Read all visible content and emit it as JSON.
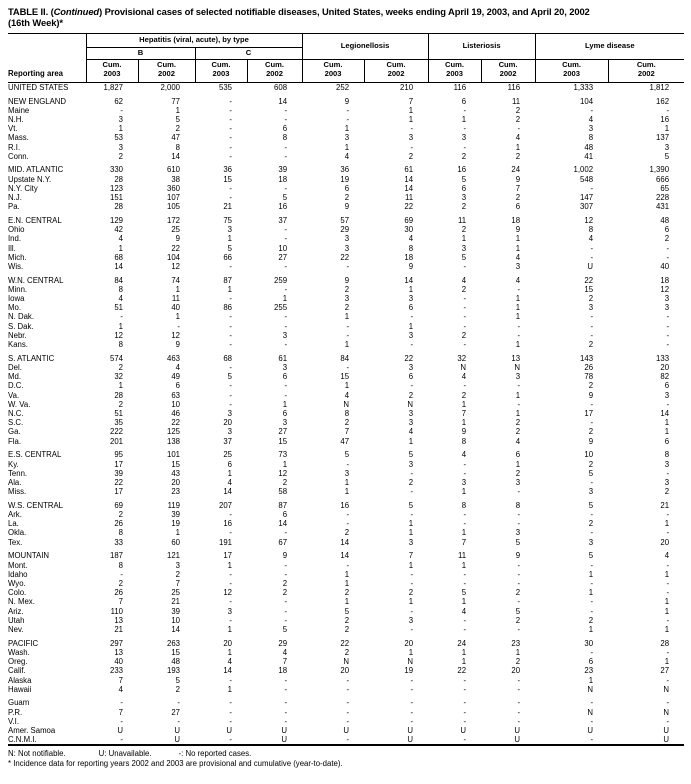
{
  "title": {
    "part1": "TABLE II. (",
    "continued": "Continued",
    "part2": ") Provisional cases of selected notifiable diseases, United States, weeks ending April 19, 2003, and April 20, 2002",
    "line2": "(16th Week)*"
  },
  "table": {
    "header": {
      "reporting_area": "Reporting area",
      "hepatitis": "Hepatitis (viral, acute), by type",
      "type_b": "B",
      "type_c": "C",
      "legionellosis": "Legionellosis",
      "listeriosis": "Listeriosis",
      "lyme": "Lyme disease",
      "cum": "Cum.",
      "y2003": "2003",
      "y2002": "2002"
    },
    "rows": [
      {
        "area": "UNITED STATES",
        "values": [
          "1,827",
          "2,000",
          "535",
          "608",
          "252",
          "210",
          "116",
          "116",
          "1,333",
          "1,812"
        ]
      },
      {
        "area": "NEW ENGLAND",
        "gap_before": true,
        "values": [
          "62",
          "77",
          "-",
          "14",
          "9",
          "7",
          "6",
          "11",
          "104",
          "162"
        ]
      },
      {
        "area": "Maine",
        "values": [
          "-",
          "1",
          "-",
          "-",
          "-",
          "1",
          "-",
          "2",
          "-",
          "-"
        ]
      },
      {
        "area": "N.H.",
        "values": [
          "3",
          "5",
          "-",
          "-",
          "-",
          "1",
          "1",
          "2",
          "4",
          "16"
        ]
      },
      {
        "area": "Vt.",
        "values": [
          "1",
          "2",
          "-",
          "6",
          "1",
          "-",
          "-",
          "-",
          "3",
          "1"
        ]
      },
      {
        "area": "Mass.",
        "values": [
          "53",
          "47",
          "-",
          "8",
          "3",
          "3",
          "3",
          "4",
          "8",
          "137"
        ]
      },
      {
        "area": "R.I.",
        "values": [
          "3",
          "8",
          "-",
          "-",
          "1",
          "-",
          "-",
          "1",
          "48",
          "3"
        ]
      },
      {
        "area": "Conn.",
        "values": [
          "2",
          "14",
          "-",
          "-",
          "4",
          "2",
          "2",
          "2",
          "41",
          "5"
        ]
      },
      {
        "area": "MID. ATLANTIC",
        "gap_before": true,
        "values": [
          "330",
          "610",
          "36",
          "39",
          "36",
          "61",
          "16",
          "24",
          "1,002",
          "1,390"
        ]
      },
      {
        "area": "Upstate N.Y.",
        "values": [
          "28",
          "38",
          "15",
          "18",
          "19",
          "14",
          "5",
          "9",
          "548",
          "666"
        ]
      },
      {
        "area": "N.Y. City",
        "values": [
          "123",
          "360",
          "-",
          "-",
          "6",
          "14",
          "6",
          "7",
          "-",
          "65"
        ]
      },
      {
        "area": "N.J.",
        "values": [
          "151",
          "107",
          "-",
          "5",
          "2",
          "11",
          "3",
          "2",
          "147",
          "228"
        ]
      },
      {
        "area": "Pa.",
        "values": [
          "28",
          "105",
          "21",
          "16",
          "9",
          "22",
          "2",
          "6",
          "307",
          "431"
        ]
      },
      {
        "area": "E.N. CENTRAL",
        "gap_before": true,
        "values": [
          "129",
          "172",
          "75",
          "37",
          "57",
          "69",
          "11",
          "18",
          "12",
          "48"
        ]
      },
      {
        "area": "Ohio",
        "values": [
          "42",
          "25",
          "3",
          "-",
          "29",
          "30",
          "2",
          "9",
          "8",
          "6"
        ]
      },
      {
        "area": "Ind.",
        "values": [
          "4",
          "9",
          "1",
          "-",
          "3",
          "4",
          "1",
          "1",
          "4",
          "2"
        ]
      },
      {
        "area": "Ill.",
        "values": [
          "1",
          "22",
          "5",
          "10",
          "3",
          "8",
          "3",
          "1",
          "-",
          "-"
        ]
      },
      {
        "area": "Mich.",
        "values": [
          "68",
          "104",
          "66",
          "27",
          "22",
          "18",
          "5",
          "4",
          "-",
          "-"
        ]
      },
      {
        "area": "Wis.",
        "values": [
          "14",
          "12",
          "-",
          "-",
          "-",
          "9",
          "-",
          "3",
          "U",
          "40"
        ]
      },
      {
        "area": "W.N. CENTRAL",
        "gap_before": true,
        "values": [
          "84",
          "74",
          "87",
          "259",
          "9",
          "14",
          "4",
          "4",
          "22",
          "18"
        ]
      },
      {
        "area": "Minn.",
        "values": [
          "8",
          "1",
          "1",
          "-",
          "2",
          "1",
          "2",
          "-",
          "15",
          "12"
        ]
      },
      {
        "area": "Iowa",
        "values": [
          "4",
          "11",
          "-",
          "1",
          "3",
          "3",
          "-",
          "1",
          "2",
          "3"
        ]
      },
      {
        "area": "Mo.",
        "values": [
          "51",
          "40",
          "86",
          "255",
          "2",
          "6",
          "-",
          "1",
          "3",
          "3"
        ]
      },
      {
        "area": "N. Dak.",
        "values": [
          "-",
          "1",
          "-",
          "-",
          "1",
          "-",
          "-",
          "1",
          "-",
          "-"
        ]
      },
      {
        "area": "S. Dak.",
        "values": [
          "1",
          "-",
          "-",
          "-",
          "-",
          "1",
          "-",
          "-",
          "-",
          "-"
        ]
      },
      {
        "area": "Nebr.",
        "values": [
          "12",
          "12",
          "-",
          "3",
          "-",
          "3",
          "2",
          "-",
          "-",
          "-"
        ]
      },
      {
        "area": "Kans.",
        "values": [
          "8",
          "9",
          "-",
          "-",
          "1",
          "-",
          "-",
          "1",
          "2",
          "-"
        ]
      },
      {
        "area": "S. ATLANTIC",
        "gap_before": true,
        "values": [
          "574",
          "463",
          "68",
          "61",
          "84",
          "22",
          "32",
          "13",
          "143",
          "133"
        ]
      },
      {
        "area": "Del.",
        "values": [
          "2",
          "4",
          "-",
          "3",
          "-",
          "3",
          "N",
          "N",
          "26",
          "20"
        ]
      },
      {
        "area": "Md.",
        "values": [
          "32",
          "49",
          "5",
          "6",
          "15",
          "6",
          "4",
          "3",
          "78",
          "82"
        ]
      },
      {
        "area": "D.C.",
        "values": [
          "1",
          "6",
          "-",
          "-",
          "1",
          "-",
          "-",
          "-",
          "2",
          "6"
        ]
      },
      {
        "area": "Va.",
        "values": [
          "28",
          "63",
          "-",
          "-",
          "4",
          "2",
          "2",
          "1",
          "9",
          "3"
        ]
      },
      {
        "area": "W. Va.",
        "values": [
          "2",
          "10",
          "-",
          "1",
          "N",
          "N",
          "1",
          "-",
          "-",
          "-"
        ]
      },
      {
        "area": "N.C.",
        "values": [
          "51",
          "46",
          "3",
          "6",
          "8",
          "3",
          "7",
          "1",
          "17",
          "14"
        ]
      },
      {
        "area": "S.C.",
        "values": [
          "35",
          "22",
          "20",
          "3",
          "2",
          "3",
          "1",
          "2",
          "-",
          "1"
        ]
      },
      {
        "area": "Ga.",
        "values": [
          "222",
          "125",
          "3",
          "27",
          "7",
          "4",
          "9",
          "2",
          "2",
          "1"
        ]
      },
      {
        "area": "Fla.",
        "values": [
          "201",
          "138",
          "37",
          "15",
          "47",
          "1",
          "8",
          "4",
          "9",
          "6"
        ]
      },
      {
        "area": "E.S. CENTRAL",
        "gap_before": true,
        "values": [
          "95",
          "101",
          "25",
          "73",
          "5",
          "5",
          "4",
          "6",
          "10",
          "8"
        ]
      },
      {
        "area": "Ky.",
        "values": [
          "17",
          "15",
          "6",
          "1",
          "-",
          "3",
          "-",
          "1",
          "2",
          "3"
        ]
      },
      {
        "area": "Tenn.",
        "values": [
          "39",
          "43",
          "1",
          "12",
          "3",
          "-",
          "-",
          "2",
          "5",
          "-"
        ]
      },
      {
        "area": "Ala.",
        "values": [
          "22",
          "20",
          "4",
          "2",
          "1",
          "2",
          "3",
          "3",
          "-",
          "3"
        ]
      },
      {
        "area": "Miss.",
        "values": [
          "17",
          "23",
          "14",
          "58",
          "1",
          "-",
          "1",
          "-",
          "3",
          "2"
        ]
      },
      {
        "area": "W.S. CENTRAL",
        "gap_before": true,
        "values": [
          "69",
          "119",
          "207",
          "87",
          "16",
          "5",
          "8",
          "8",
          "5",
          "21"
        ]
      },
      {
        "area": "Ark.",
        "values": [
          "2",
          "39",
          "-",
          "6",
          "-",
          "-",
          "-",
          "-",
          "-",
          "-"
        ]
      },
      {
        "area": "La.",
        "values": [
          "26",
          "19",
          "16",
          "14",
          "-",
          "1",
          "-",
          "-",
          "2",
          "1"
        ]
      },
      {
        "area": "Okla.",
        "values": [
          "8",
          "1",
          "-",
          "-",
          "2",
          "1",
          "1",
          "3",
          "-",
          "-"
        ]
      },
      {
        "area": "Tex.",
        "values": [
          "33",
          "60",
          "191",
          "67",
          "14",
          "3",
          "7",
          "5",
          "3",
          "20"
        ]
      },
      {
        "area": "MOUNTAIN",
        "gap_before": true,
        "values": [
          "187",
          "121",
          "17",
          "9",
          "14",
          "7",
          "11",
          "9",
          "5",
          "4"
        ]
      },
      {
        "area": "Mont.",
        "values": [
          "8",
          "3",
          "1",
          "-",
          "-",
          "1",
          "1",
          "-",
          "-",
          "-"
        ]
      },
      {
        "area": "Idaho",
        "values": [
          "-",
          "2",
          "-",
          "-",
          "1",
          "-",
          "-",
          "-",
          "1",
          "1"
        ]
      },
      {
        "area": "Wyo.",
        "values": [
          "2",
          "7",
          "-",
          "2",
          "1",
          "-",
          "-",
          "-",
          "-",
          "-"
        ]
      },
      {
        "area": "Colo.",
        "values": [
          "26",
          "25",
          "12",
          "2",
          "2",
          "2",
          "5",
          "2",
          "1",
          "-"
        ]
      },
      {
        "area": "N. Mex.",
        "values": [
          "7",
          "21",
          "-",
          "-",
          "1",
          "1",
          "1",
          "-",
          "-",
          "1"
        ]
      },
      {
        "area": "Ariz.",
        "values": [
          "110",
          "39",
          "3",
          "-",
          "5",
          "-",
          "4",
          "5",
          "-",
          "1"
        ]
      },
      {
        "area": "Utah",
        "values": [
          "13",
          "10",
          "-",
          "-",
          "2",
          "3",
          "-",
          "2",
          "2",
          "-"
        ]
      },
      {
        "area": "Nev.",
        "values": [
          "21",
          "14",
          "1",
          "5",
          "2",
          "-",
          "-",
          "-",
          "1",
          "1"
        ]
      },
      {
        "area": "PACIFIC",
        "gap_before": true,
        "values": [
          "297",
          "263",
          "20",
          "29",
          "22",
          "20",
          "24",
          "23",
          "30",
          "28"
        ]
      },
      {
        "area": "Wash.",
        "values": [
          "13",
          "15",
          "1",
          "4",
          "2",
          "1",
          "1",
          "1",
          "-",
          "-"
        ]
      },
      {
        "area": "Oreg.",
        "values": [
          "40",
          "48",
          "4",
          "7",
          "N",
          "N",
          "1",
          "2",
          "6",
          "1"
        ]
      },
      {
        "area": "Calif.",
        "values": [
          "233",
          "193",
          "14",
          "18",
          "20",
          "19",
          "22",
          "20",
          "23",
          "27"
        ]
      },
      {
        "area": "Alaska",
        "values": [
          "7",
          "5",
          "-",
          "-",
          "-",
          "-",
          "-",
          "-",
          "1",
          "-"
        ]
      },
      {
        "area": "Hawaii",
        "values": [
          "4",
          "2",
          "1",
          "-",
          "-",
          "-",
          "-",
          "-",
          "N",
          "N"
        ]
      },
      {
        "area": "Guam",
        "gap_before": true,
        "values": [
          "-",
          "-",
          "-",
          "-",
          "-",
          "-",
          "-",
          "-",
          "-",
          "-"
        ]
      },
      {
        "area": "P.R.",
        "values": [
          "7",
          "27",
          "-",
          "-",
          "-",
          "-",
          "-",
          "-",
          "N",
          "N"
        ]
      },
      {
        "area": "V.I.",
        "values": [
          "-",
          "-",
          "-",
          "-",
          "-",
          "-",
          "-",
          "-",
          "-",
          "-"
        ]
      },
      {
        "area": "Amer. Samoa",
        "values": [
          "U",
          "U",
          "U",
          "U",
          "U",
          "U",
          "U",
          "U",
          "U",
          "U"
        ]
      },
      {
        "area": "C.N.M.I.",
        "values": [
          "-",
          "U",
          "-",
          "U",
          "-",
          "U",
          "-",
          "U",
          "-",
          "U"
        ]
      }
    ]
  },
  "footnotes": {
    "n": "N: Not notifiable.",
    "u": "U: Unavailable.",
    "dash": "-: No reported cases.",
    "asterisk": "* Incidence data for reporting years 2002 and 2003 are provisional and cumulative (year-to-date)."
  },
  "colors": {
    "ink": "#000000",
    "background": "#ffffff"
  }
}
